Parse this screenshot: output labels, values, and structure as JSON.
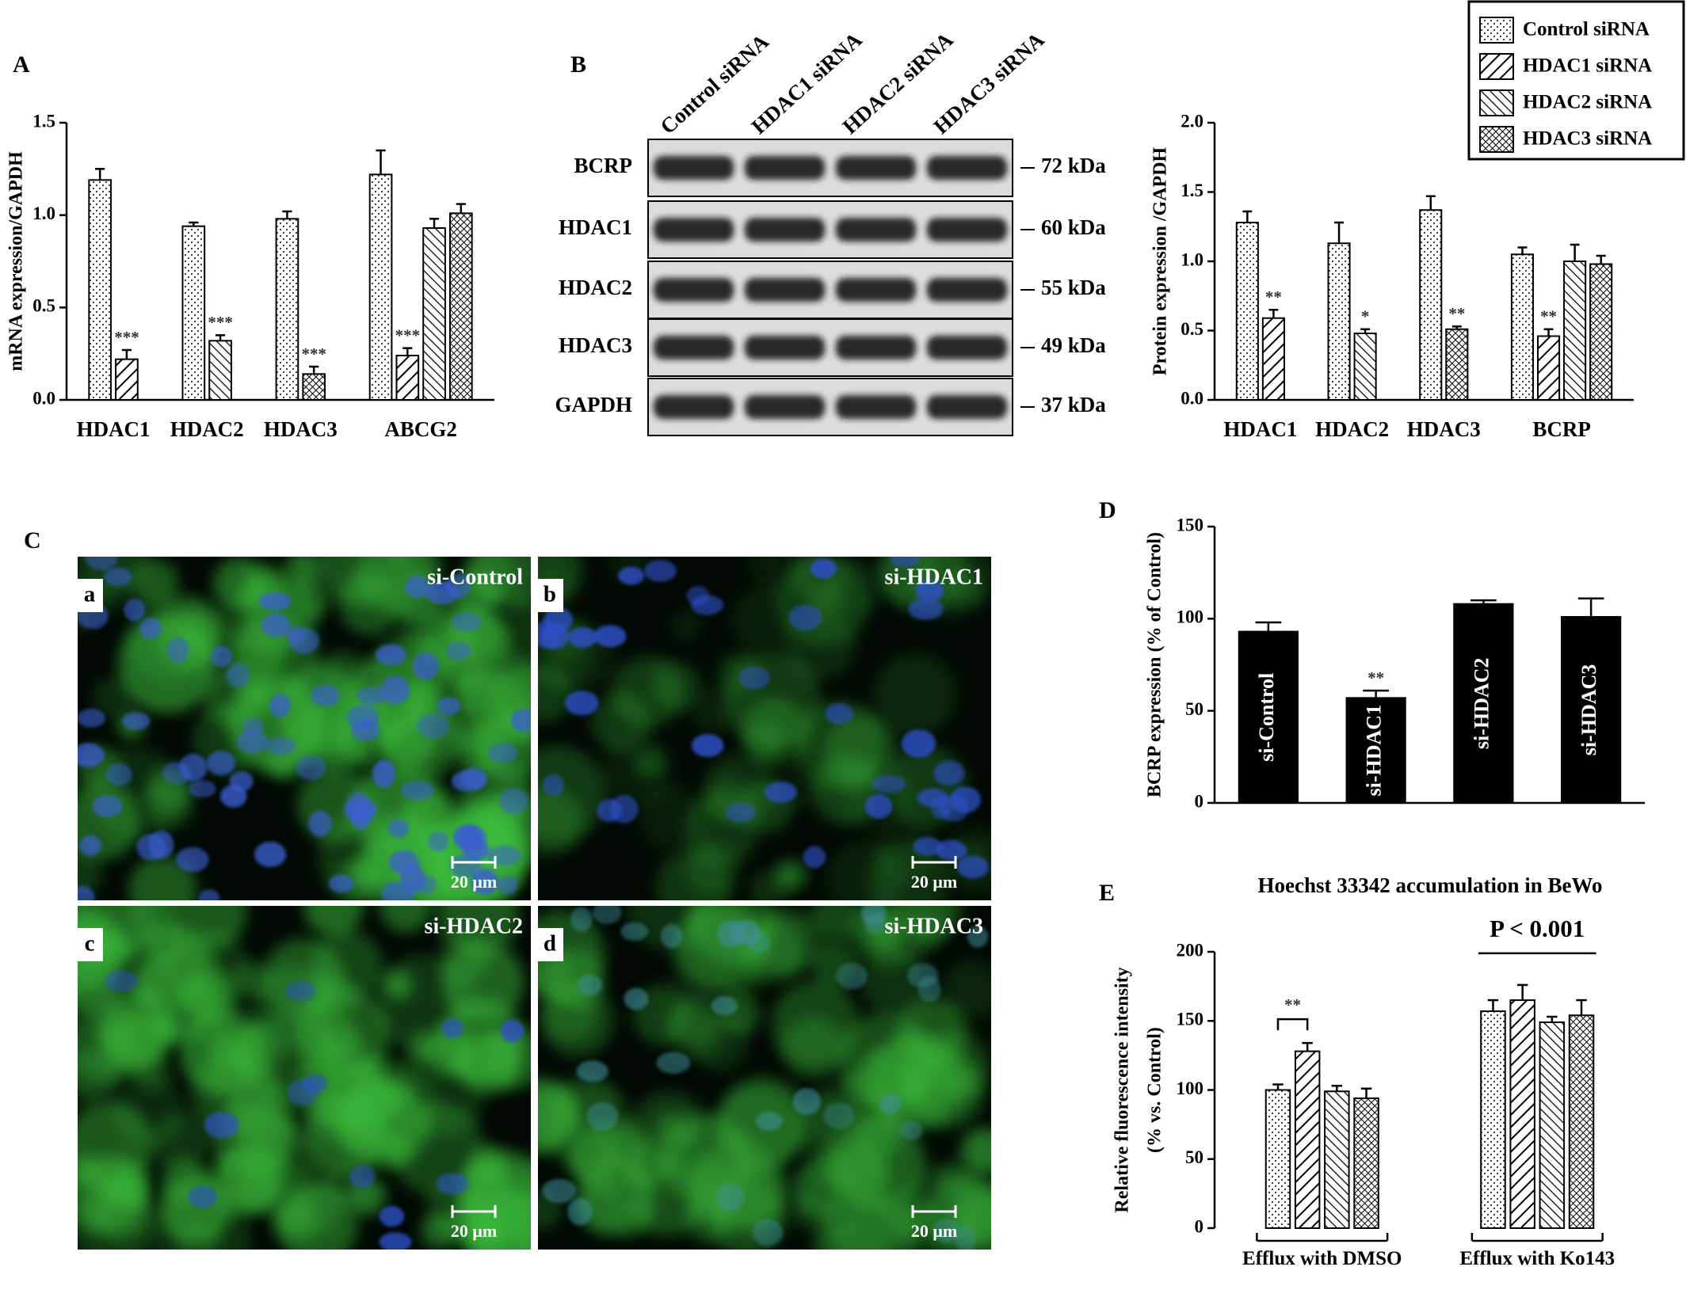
{
  "chart_data": [
    {
      "type": "bar",
      "panel": "A",
      "ylabel": "mRNA expression/GAPDH",
      "categories": [
        "HDAC1",
        "HDAC2",
        "HDAC3",
        "ABCG2"
      ],
      "series": [
        {
          "name": "Control siRNA",
          "pattern": "dots",
          "values": [
            1.19,
            0.94,
            0.98,
            1.22
          ],
          "errors": [
            0.06,
            0.02,
            0.04,
            0.13
          ]
        },
        {
          "name": "HDAC1 siRNA",
          "pattern": "fwd",
          "values": [
            0.22,
            null,
            null,
            0.24
          ],
          "errors": [
            0.05,
            null,
            null,
            0.04
          ],
          "significance": [
            "***",
            null,
            null,
            "***"
          ]
        },
        {
          "name": "HDAC2 siRNA",
          "pattern": "back",
          "values": [
            null,
            0.32,
            null,
            0.93
          ],
          "errors": [
            null,
            0.03,
            null,
            0.05
          ],
          "significance": [
            null,
            "***",
            null,
            null
          ]
        },
        {
          "name": "HDAC3 siRNA",
          "pattern": "cross",
          "values": [
            null,
            null,
            0.14,
            1.01
          ],
          "errors": [
            null,
            null,
            0.04,
            0.05
          ],
          "significance": [
            null,
            null,
            "***",
            null
          ]
        }
      ],
      "ylim": [
        0,
        1.5
      ],
      "yticks": [
        {
          "value": 0,
          "label": "0.0"
        },
        {
          "value": 0.5,
          "label": "0.5"
        },
        {
          "value": 1,
          "label": "1.0"
        },
        {
          "value": 1.5,
          "label": "1.5"
        }
      ]
    },
    {
      "type": "bar",
      "ylabel": "Protein expression /GAPDH",
      "categories": [
        "HDAC1",
        "HDAC2",
        "HDAC3",
        "BCRP"
      ],
      "series": [
        {
          "pattern": "dots",
          "values": [
            1.28,
            1.13,
            1.37,
            1.05
          ],
          "errors": [
            0.08,
            0.15,
            0.1,
            0.05
          ]
        },
        {
          "pattern": "fwd",
          "values": [
            0.59,
            null,
            null,
            0.46
          ],
          "errors": [
            0.06,
            null,
            null,
            0.05
          ],
          "significance": [
            "**",
            null,
            null,
            "**"
          ]
        },
        {
          "pattern": "back",
          "values": [
            null,
            0.48,
            null,
            1.0
          ],
          "errors": [
            null,
            0.03,
            null,
            0.12
          ],
          "significance": [
            null,
            "*",
            null,
            null
          ]
        },
        {
          "pattern": "cross",
          "values": [
            null,
            null,
            0.51,
            0.98
          ],
          "errors": [
            null,
            null,
            0.02,
            0.06
          ],
          "significance": [
            null,
            null,
            "**",
            null
          ]
        }
      ],
      "ylim": [
        0,
        2
      ],
      "yticks": [
        {
          "value": 0,
          "label": "0.0"
        },
        {
          "value": 0.5,
          "label": "0.5"
        },
        {
          "value": 1,
          "label": "1.0"
        },
        {
          "value": 1.5,
          "label": "1.5"
        },
        {
          "value": 2,
          "label": "2.0"
        }
      ]
    },
    {
      "type": "bar",
      "panel": "D",
      "ylabel": "BCRP expression (% of Control)",
      "categories": [
        "si-Control",
        "si-HDAC1",
        "si-HDAC2",
        "si-HDAC3"
      ],
      "values": [
        93,
        57,
        108,
        101
      ],
      "errors": [
        5,
        4,
        2,
        10
      ],
      "significance": [
        null,
        "**",
        null,
        null
      ],
      "color": "#000000",
      "ylim": [
        0,
        150
      ],
      "yticks": [
        0,
        50,
        100,
        150
      ]
    },
    {
      "type": "bar",
      "panel": "E",
      "title": "Hoechst 33342 accumulation in BeWo",
      "ylabel": [
        "Relative fluorescence intensity",
        "(% vs. Control)"
      ],
      "categories": [
        "Efflux with DMSO",
        "Efflux with Ko143"
      ],
      "series": [
        {
          "pattern": "dots",
          "values": [
            100,
            157
          ],
          "errors": [
            4,
            8
          ]
        },
        {
          "pattern": "fwd",
          "values": [
            128,
            165
          ],
          "errors": [
            6,
            11
          ]
        },
        {
          "pattern": "back",
          "values": [
            99,
            149
          ],
          "errors": [
            4,
            4
          ]
        },
        {
          "pattern": "cross",
          "values": [
            94,
            154
          ],
          "errors": [
            7,
            11
          ]
        }
      ],
      "annotations": [
        {
          "text": "**"
        },
        {
          "text": "P < 0.001"
        }
      ],
      "ylim": [
        0,
        200
      ],
      "yticks": [
        0,
        50,
        100,
        150,
        200
      ]
    }
  ],
  "blot": {
    "panel": "B",
    "lanes": [
      "Control siRNA",
      "HDAC1 siRNA",
      "HDAC2 siRNA",
      "HDAC3 siRNA"
    ],
    "rows": [
      {
        "label": "BCRP",
        "size": "72 kDa"
      },
      {
        "label": "HDAC1",
        "size": "60 kDa"
      },
      {
        "label": "HDAC2",
        "size": "55 kDa"
      },
      {
        "label": "HDAC3",
        "size": "49 kDa"
      },
      {
        "label": "GAPDH",
        "size": "37 kDa"
      }
    ]
  },
  "micrographs": {
    "panel": "C",
    "images": [
      {
        "letter": "a",
        "label": "si-Control",
        "scale": "20 μm"
      },
      {
        "letter": "b",
        "label": "si-HDAC1",
        "scale": "20 μm"
      },
      {
        "letter": "c",
        "label": "si-HDAC2",
        "scale": "20 μm"
      },
      {
        "letter": "d",
        "label": "si-HDAC3",
        "scale": "20 μm"
      }
    ]
  }
}
